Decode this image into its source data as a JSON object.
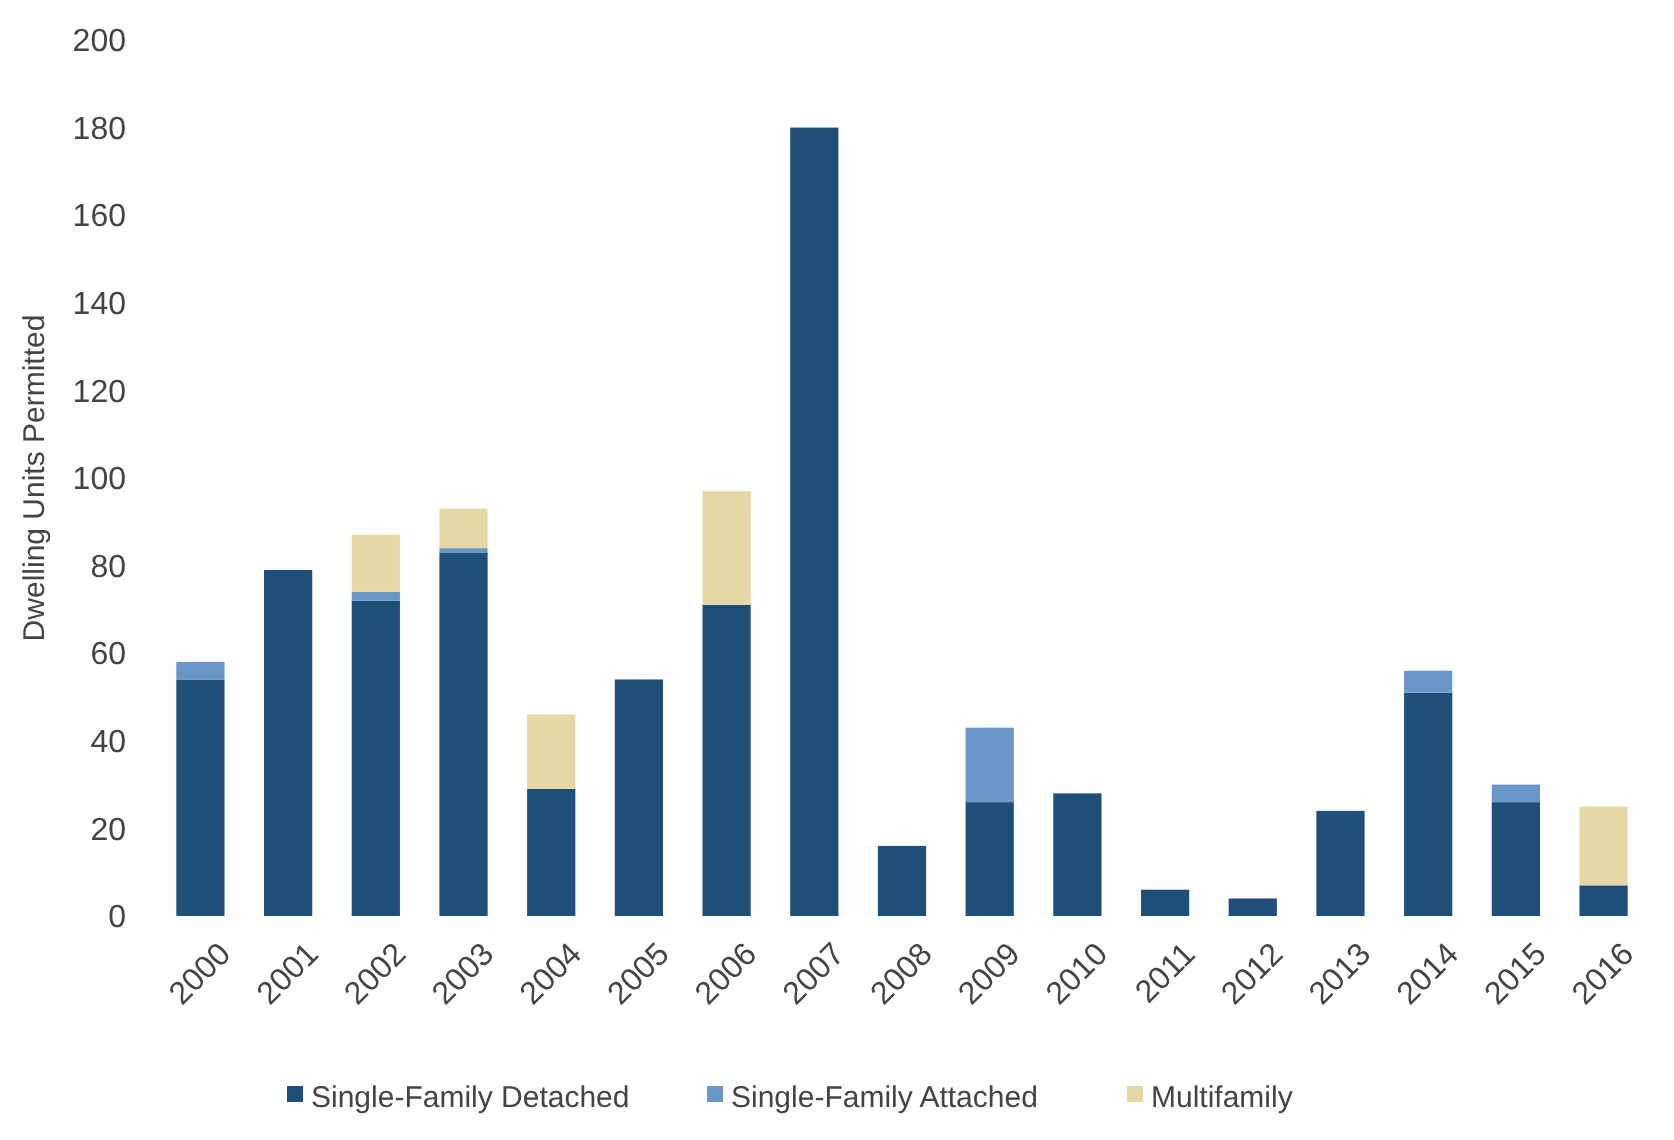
{
  "chart_data": {
    "type": "bar",
    "stacked": true,
    "ylabel": "Dwelling Units Permitted",
    "categories": [
      "2000",
      "2001",
      "2002",
      "2003",
      "2004",
      "2005",
      "2006",
      "2007",
      "2008",
      "2009",
      "2010",
      "2011",
      "2012",
      "2013",
      "2014",
      "2015",
      "2016"
    ],
    "series": [
      {
        "name": "Single-Family Detached",
        "color": "#1f4e79",
        "values": [
          54,
          79,
          72,
          83,
          29,
          54,
          71,
          180,
          16,
          26,
          28,
          6,
          4,
          24,
          51,
          26,
          7
        ]
      },
      {
        "name": "Single-Family Attached",
        "color": "#6a96c8",
        "values": [
          4,
          0,
          2,
          1,
          0,
          0,
          0,
          0,
          0,
          17,
          0,
          0,
          0,
          0,
          5,
          4,
          0
        ]
      },
      {
        "name": "Multifamily",
        "color": "#e6d8a6",
        "values": [
          0,
          0,
          13,
          9,
          17,
          0,
          26,
          0,
          0,
          0,
          0,
          0,
          0,
          0,
          0,
          0,
          18
        ]
      }
    ],
    "ylim": [
      0,
      200
    ],
    "yticks": [
      0,
      20,
      40,
      60,
      80,
      100,
      120,
      140,
      160,
      180,
      200
    ],
    "legend": "bottom"
  }
}
